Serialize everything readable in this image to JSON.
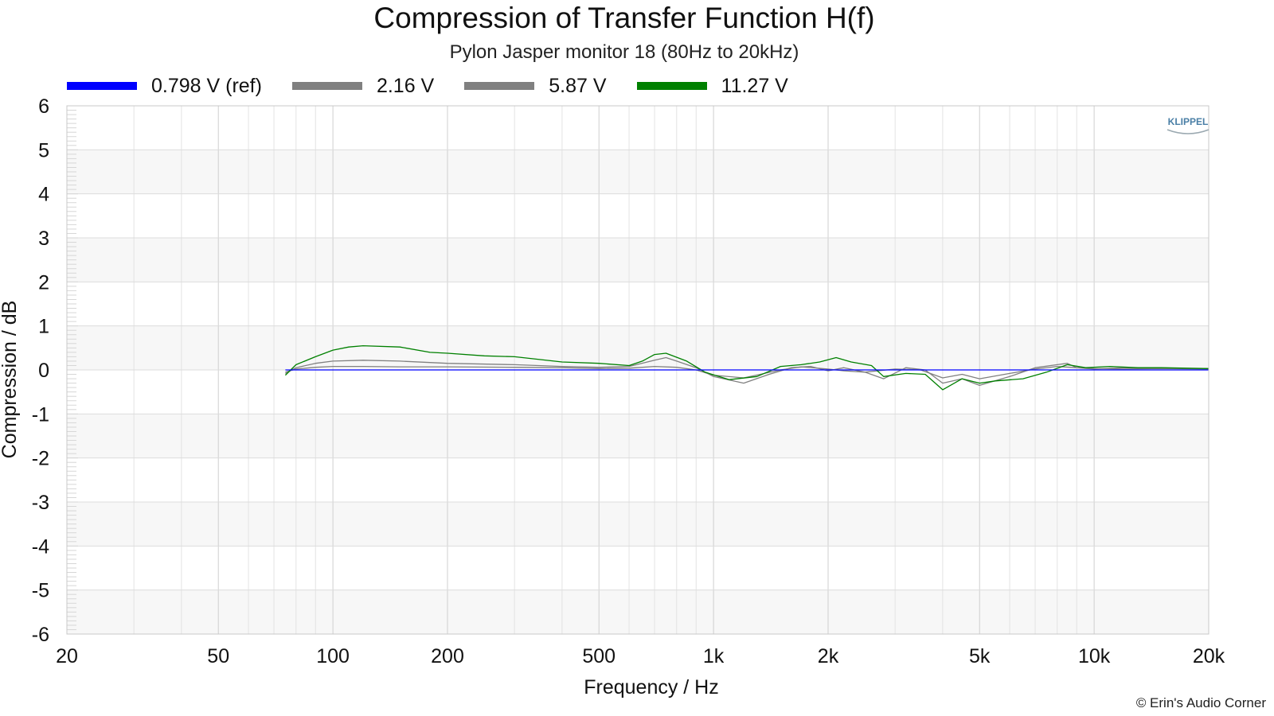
{
  "chart_data": {
    "type": "line",
    "title": "Compression of Transfer Function H(f)",
    "subtitle": "Pylon Jasper monitor 18 (80Hz to 20kHz)",
    "xlabel": "Frequency / Hz",
    "ylabel": "Compression / dB",
    "x_scale": "log",
    "xlim": [
      20,
      20000
    ],
    "ylim": [
      -6,
      6
    ],
    "x_ticks": [
      {
        "value": 20,
        "label": "20"
      },
      {
        "value": 50,
        "label": "50"
      },
      {
        "value": 100,
        "label": "100"
      },
      {
        "value": 200,
        "label": "200"
      },
      {
        "value": 500,
        "label": "500"
      },
      {
        "value": 1000,
        "label": "1k"
      },
      {
        "value": 2000,
        "label": "2k"
      },
      {
        "value": 5000,
        "label": "5k"
      },
      {
        "value": 10000,
        "label": "10k"
      },
      {
        "value": 20000,
        "label": "20k"
      }
    ],
    "y_ticks": [
      6,
      5,
      4,
      3,
      2,
      1,
      0,
      -1,
      -2,
      -3,
      -4,
      -5,
      -6
    ],
    "grid": true,
    "legend_position": "top",
    "series": [
      {
        "name": "0.798 V (ref)",
        "color": "#0000ff",
        "points": [
          [
            75,
            0
          ],
          [
            20000,
            0
          ]
        ]
      },
      {
        "name": "2.16 V",
        "color": "#808080",
        "points": [
          [
            75,
            -0.05
          ],
          [
            80,
            0.02
          ],
          [
            90,
            0.06
          ],
          [
            100,
            0.08
          ],
          [
            120,
            0.08
          ],
          [
            150,
            0.07
          ],
          [
            200,
            0.07
          ],
          [
            300,
            0.06
          ],
          [
            400,
            0.05
          ],
          [
            500,
            0.03
          ],
          [
            600,
            0.04
          ],
          [
            700,
            0.08
          ],
          [
            800,
            0.06
          ],
          [
            900,
            0.0
          ],
          [
            1000,
            -0.12
          ],
          [
            1200,
            -0.18
          ],
          [
            1500,
            0.0
          ],
          [
            1700,
            0.07
          ],
          [
            2000,
            0.02
          ],
          [
            2200,
            -0.02
          ],
          [
            2500,
            -0.05
          ],
          [
            3000,
            0.02
          ],
          [
            3500,
            0.0
          ],
          [
            4000,
            -0.18
          ],
          [
            4500,
            -0.1
          ],
          [
            5000,
            -0.2
          ],
          [
            6000,
            -0.08
          ],
          [
            7000,
            0.02
          ],
          [
            8000,
            0.08
          ],
          [
            9000,
            0.05
          ],
          [
            10000,
            0.03
          ],
          [
            12000,
            0.02
          ],
          [
            15000,
            0.03
          ],
          [
            20000,
            0.02
          ]
        ]
      },
      {
        "name": "5.87 V",
        "color": "#808080",
        "points": [
          [
            75,
            -0.08
          ],
          [
            80,
            0.05
          ],
          [
            90,
            0.15
          ],
          [
            100,
            0.2
          ],
          [
            120,
            0.22
          ],
          [
            150,
            0.2
          ],
          [
            200,
            0.15
          ],
          [
            300,
            0.12
          ],
          [
            400,
            0.08
          ],
          [
            500,
            0.06
          ],
          [
            600,
            0.08
          ],
          [
            700,
            0.22
          ],
          [
            750,
            0.28
          ],
          [
            800,
            0.2
          ],
          [
            900,
            0.05
          ],
          [
            1000,
            -0.15
          ],
          [
            1200,
            -0.3
          ],
          [
            1400,
            -0.1
          ],
          [
            1600,
            0.05
          ],
          [
            1800,
            0.08
          ],
          [
            2000,
            -0.02
          ],
          [
            2200,
            0.05
          ],
          [
            2500,
            -0.05
          ],
          [
            2800,
            -0.2
          ],
          [
            3200,
            0.05
          ],
          [
            3600,
            0.0
          ],
          [
            4000,
            -0.3
          ],
          [
            4500,
            -0.2
          ],
          [
            5000,
            -0.35
          ],
          [
            6000,
            -0.15
          ],
          [
            7000,
            0.05
          ],
          [
            8000,
            0.12
          ],
          [
            8500,
            0.15
          ],
          [
            9000,
            0.05
          ],
          [
            10000,
            0.02
          ],
          [
            12000,
            0.05
          ],
          [
            15000,
            0.03
          ],
          [
            20000,
            0.03
          ]
        ]
      },
      {
        "name": "11.27 V",
        "color": "#008000",
        "points": [
          [
            75,
            -0.12
          ],
          [
            80,
            0.12
          ],
          [
            90,
            0.3
          ],
          [
            100,
            0.45
          ],
          [
            110,
            0.52
          ],
          [
            120,
            0.55
          ],
          [
            150,
            0.52
          ],
          [
            180,
            0.4
          ],
          [
            200,
            0.38
          ],
          [
            250,
            0.32
          ],
          [
            300,
            0.3
          ],
          [
            400,
            0.18
          ],
          [
            500,
            0.15
          ],
          [
            600,
            0.1
          ],
          [
            650,
            0.2
          ],
          [
            700,
            0.35
          ],
          [
            750,
            0.38
          ],
          [
            850,
            0.2
          ],
          [
            950,
            -0.05
          ],
          [
            1100,
            -0.22
          ],
          [
            1300,
            -0.15
          ],
          [
            1500,
            0.08
          ],
          [
            1700,
            0.12
          ],
          [
            1900,
            0.18
          ],
          [
            2100,
            0.28
          ],
          [
            2300,
            0.18
          ],
          [
            2600,
            0.1
          ],
          [
            2800,
            -0.15
          ],
          [
            3200,
            -0.08
          ],
          [
            3600,
            -0.1
          ],
          [
            4000,
            -0.45
          ],
          [
            4500,
            -0.2
          ],
          [
            5000,
            -0.3
          ],
          [
            5500,
            -0.25
          ],
          [
            6500,
            -0.2
          ],
          [
            7500,
            -0.05
          ],
          [
            8500,
            0.12
          ],
          [
            9500,
            0.05
          ],
          [
            11000,
            0.08
          ],
          [
            13000,
            0.05
          ],
          [
            15000,
            0.05
          ],
          [
            20000,
            0.03
          ]
        ]
      }
    ],
    "annotations": [
      "© Erin's Audio Corner"
    ]
  },
  "logo_text": "KLIPPEL",
  "watermark": "© Erin's Audio Corner"
}
